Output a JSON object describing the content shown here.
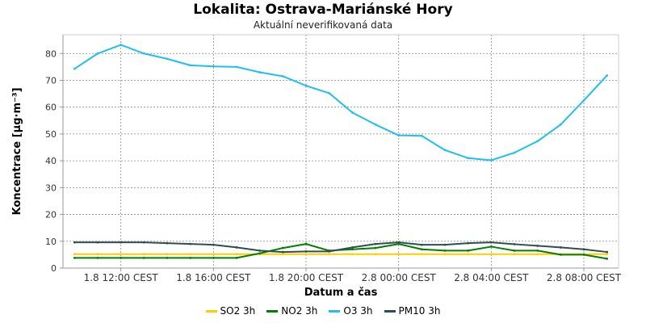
{
  "chart_data": {
    "type": "line",
    "title": "Lokalita: Ostrava-Mariánské Hory",
    "subtitle": "Aktuální neverifikovaná data",
    "xlabel": "Datum a čas",
    "ylabel": "Koncentrace [µg·m⁻³]",
    "ylim": [
      0,
      87
    ],
    "yticks": [
      0,
      10,
      20,
      30,
      40,
      50,
      60,
      70,
      80
    ],
    "xlim": [
      9.5,
      33.5
    ],
    "x_hours": [
      10,
      11,
      12,
      13,
      14,
      15,
      16,
      17,
      18,
      19,
      20,
      21,
      22,
      23,
      24,
      25,
      26,
      27,
      28,
      29,
      30,
      31,
      32,
      33
    ],
    "x_ticks": [
      {
        "hour": 12,
        "label": "1.8 12:00 CEST"
      },
      {
        "hour": 16,
        "label": "1.8 16:00 CEST"
      },
      {
        "hour": 20,
        "label": "1.8 20:00 CEST"
      },
      {
        "hour": 24,
        "label": "2.8 00:00 CEST"
      },
      {
        "hour": 28,
        "label": "2.8 04:00 CEST"
      },
      {
        "hour": 32,
        "label": "2.8 08:00 CEST"
      }
    ],
    "grid": true,
    "legend_position": "bottom",
    "series": [
      {
        "name": "SO2 3h",
        "color": "#ffcc00",
        "values": [
          5.2,
          5.2,
          5.2,
          5.2,
          5.2,
          5.2,
          5.2,
          5.2,
          5.2,
          5.2,
          5.2,
          5.2,
          5.2,
          5.2,
          5.2,
          5.2,
          5.2,
          5.2,
          5.2,
          5.2,
          5.2,
          5.2,
          5.2,
          5.2
        ]
      },
      {
        "name": "NO2 3h",
        "color": "#008000",
        "values": [
          3.8,
          3.8,
          3.8,
          3.8,
          3.8,
          3.8,
          3.8,
          3.8,
          5.5,
          7.5,
          9.0,
          6.5,
          7.0,
          7.5,
          9.0,
          7.0,
          6.5,
          6.5,
          8.0,
          6.5,
          6.5,
          5.0,
          5.0,
          3.5
        ]
      },
      {
        "name": "O3 3h",
        "color": "#1ec0f0",
        "values": [
          74.3,
          80.0,
          83.2,
          80.0,
          78.0,
          75.6,
          75.2,
          75.0,
          73.0,
          71.5,
          68.0,
          65.2,
          58.0,
          53.5,
          49.5,
          49.3,
          44.0,
          41.0,
          40.2,
          43.0,
          47.3,
          53.5,
          62.5,
          71.8
        ]
      },
      {
        "name": "PM10 3h",
        "color": "#2f4f4f",
        "values": [
          9.6,
          9.6,
          9.6,
          9.6,
          9.3,
          9.0,
          8.7,
          7.7,
          6.5,
          6.0,
          6.2,
          6.2,
          7.7,
          9.0,
          9.6,
          8.7,
          8.7,
          9.3,
          9.6,
          8.9,
          8.3,
          7.7,
          7.0,
          6.0
        ]
      }
    ]
  }
}
